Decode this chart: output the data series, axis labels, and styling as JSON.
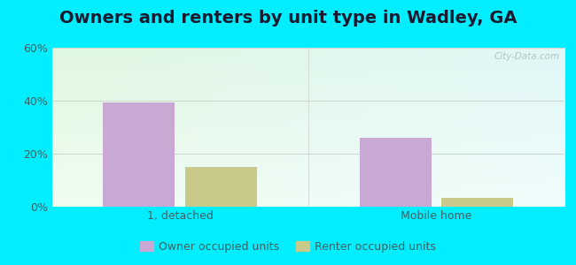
{
  "title": "Owners and renters by unit type in Wadley, GA",
  "categories": [
    "1, detached",
    "Mobile home"
  ],
  "owner_values": [
    39.5,
    26.0
  ],
  "renter_values": [
    15.0,
    3.5
  ],
  "owner_color": "#c9a8d4",
  "renter_color": "#c8c98a",
  "ylim": [
    0,
    60
  ],
  "yticks": [
    0,
    20,
    40,
    60
  ],
  "ytick_labels": [
    "0%",
    "20%",
    "40%",
    "60%"
  ],
  "bar_width": 0.28,
  "background_outer": "#00eeff",
  "grid_color": "#d0d8d0",
  "title_fontsize": 14,
  "legend_labels": [
    "Owner occupied units",
    "Renter occupied units"
  ],
  "watermark": "City-Data.com",
  "tick_color": "#406060",
  "title_color": "#1a1a2e"
}
